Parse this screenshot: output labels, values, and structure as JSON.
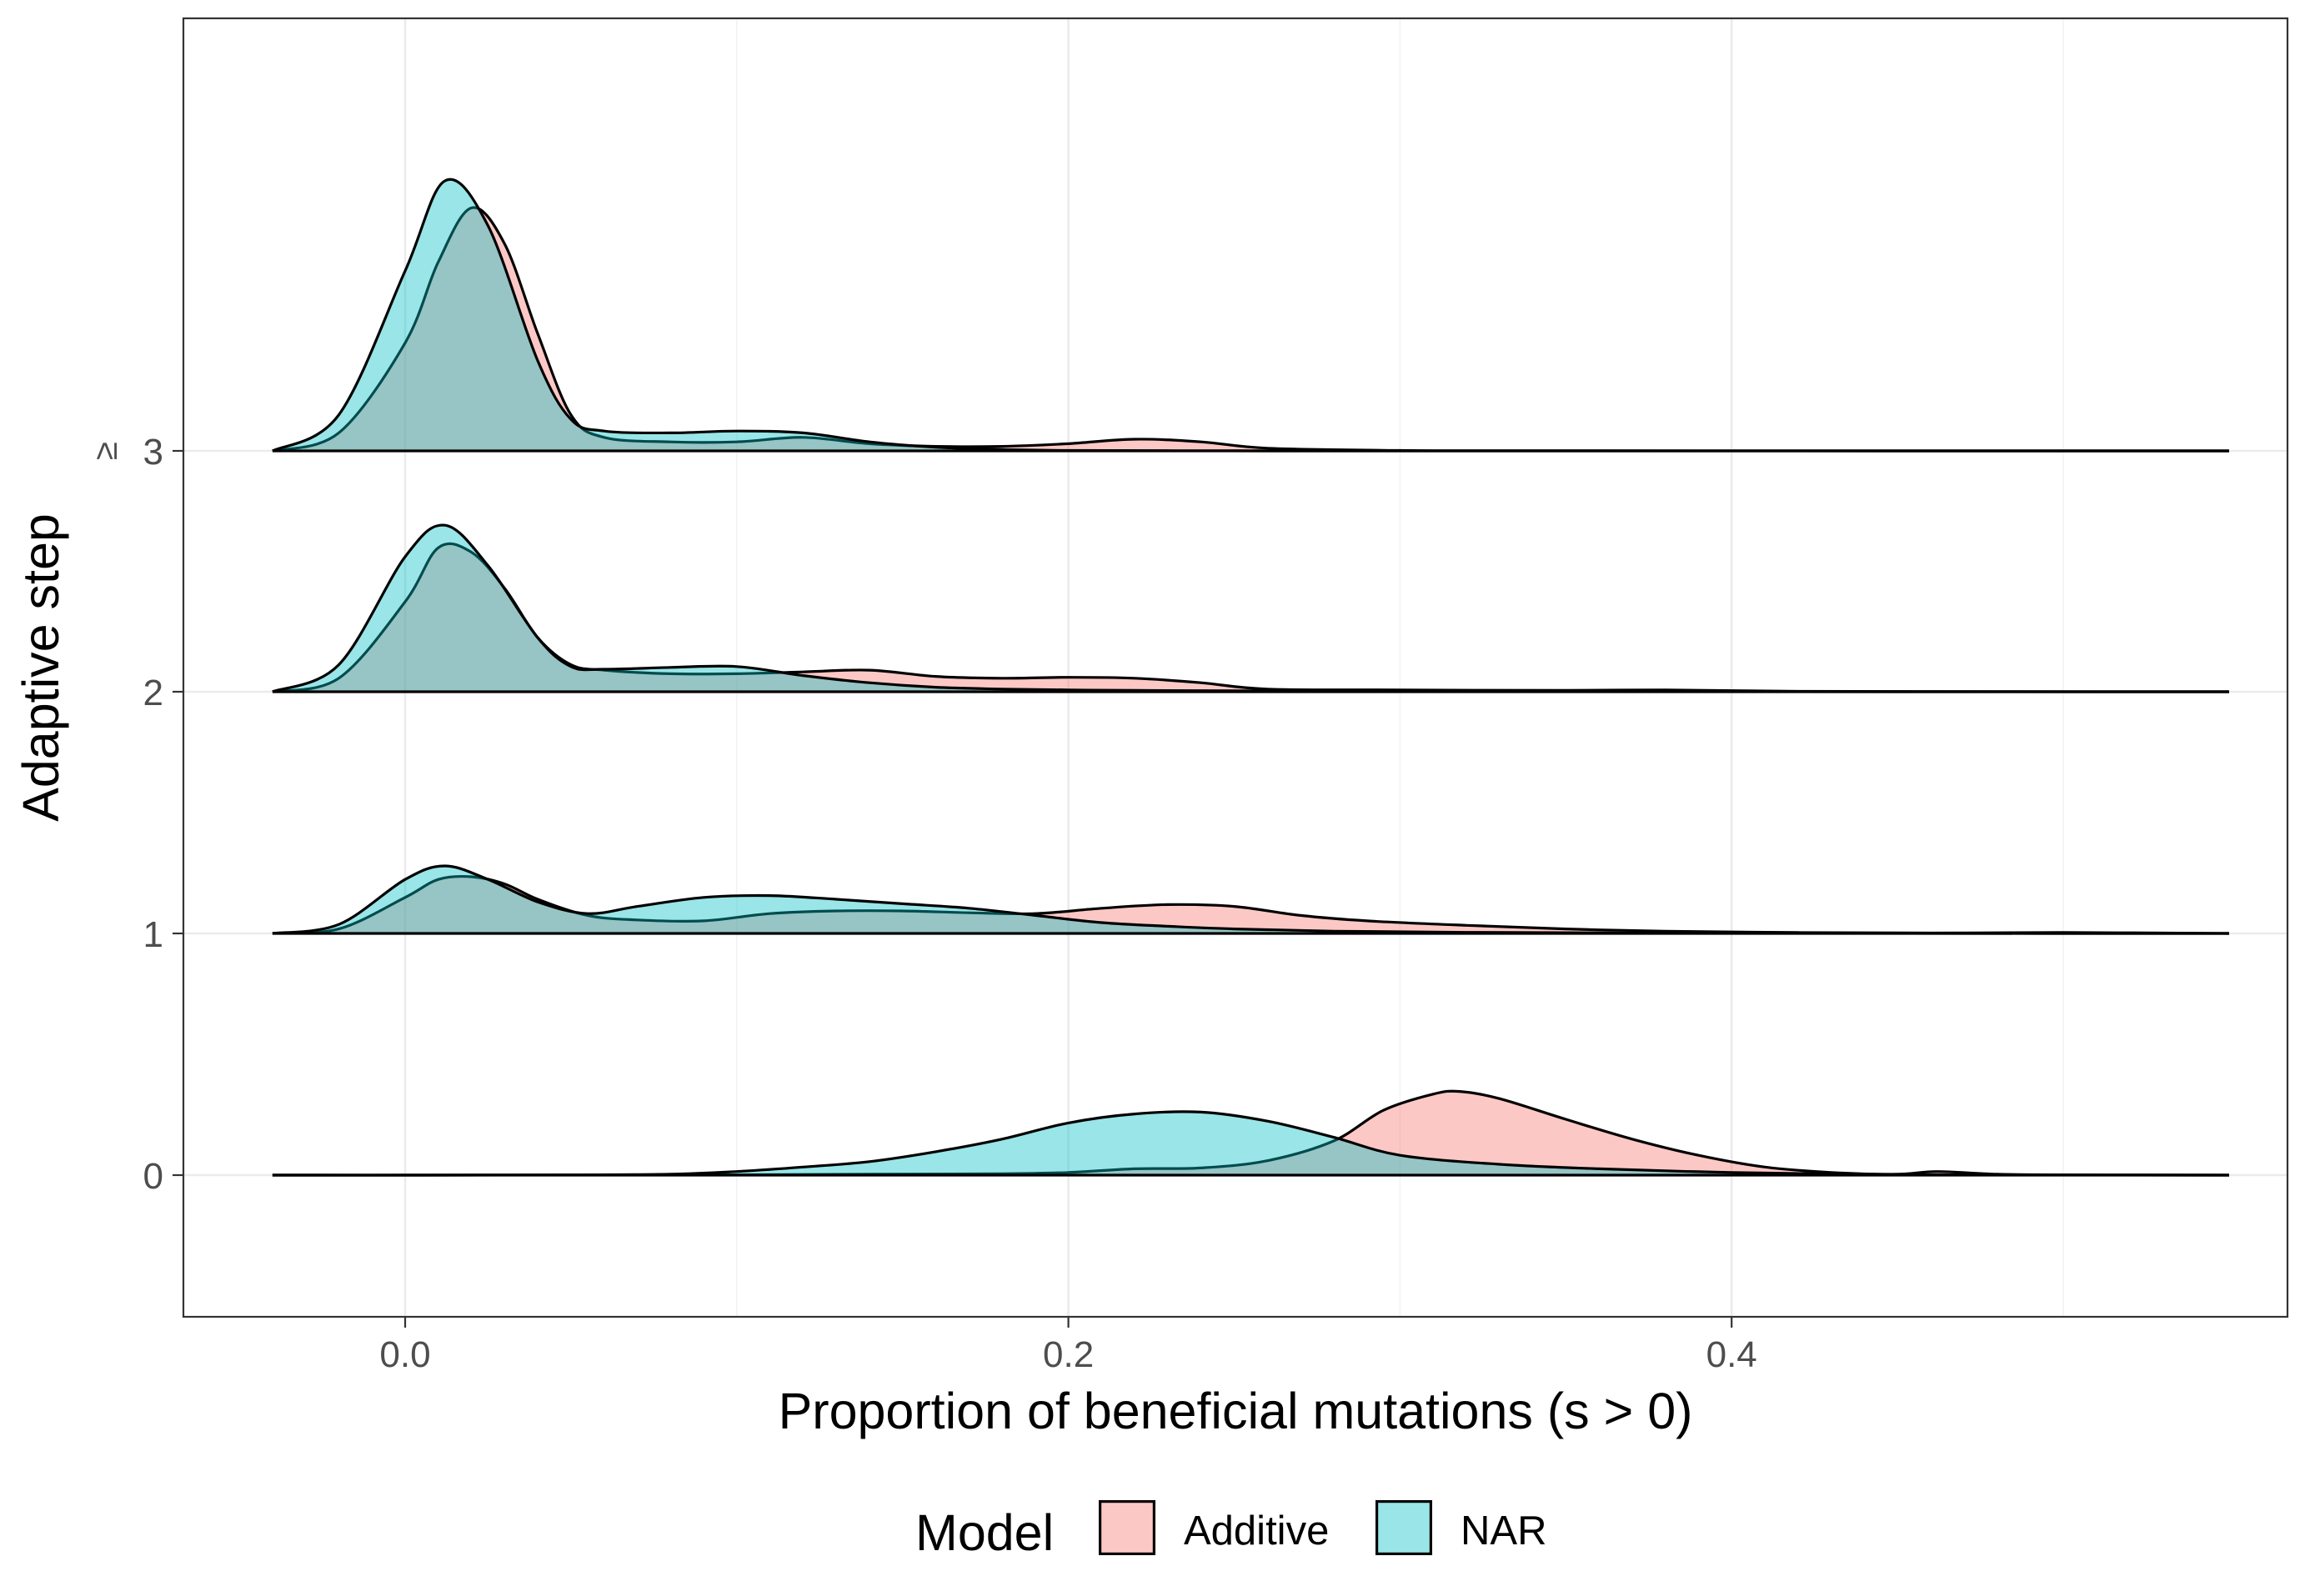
{
  "chart_data": {
    "type": "area",
    "subtype": "ridgeline-density",
    "xlabel": "Proportion of beneficial mutations (s > 0)",
    "ylabel": "Adaptive step",
    "xlim": [
      -0.067,
      0.571
    ],
    "x_ticks": [
      {
        "value": 0.0,
        "label": "0.0"
      },
      {
        "value": 0.2,
        "label": "0.2"
      },
      {
        "value": 0.4,
        "label": "0.4"
      }
    ],
    "y_ticks": [
      {
        "step": 0,
        "label": "0"
      },
      {
        "step": 1,
        "label": "1"
      },
      {
        "step": 2,
        "label": "2"
      },
      {
        "step": 3,
        "label": "≥ 3"
      }
    ],
    "grid": true,
    "theme": "bw",
    "legend": {
      "title": "Model",
      "position": "bottom",
      "entries": [
        {
          "name": "Additive",
          "color": "#F8766D"
        },
        {
          "name": "NAR",
          "color": "#00BFC4"
        }
      ]
    },
    "colors": {
      "Additive": "#F8766D",
      "NAR": "#00BFC4",
      "fill_opacity": 0.4,
      "outline": "#000000"
    },
    "ridges": [
      {
        "step": 0,
        "label": "0",
        "series": [
          {
            "name": "Additive",
            "x": [
              -0.04,
              0.0,
              0.06,
              0.1,
              0.14,
              0.18,
              0.2,
              0.22,
              0.24,
              0.26,
              0.28,
              0.295,
              0.31,
              0.318,
              0.33,
              0.35,
              0.37,
              0.39,
              0.41,
              0.43,
              0.45,
              0.462,
              0.48,
              0.5,
              0.55
            ],
            "y": [
              0,
              0,
              0.002,
              0.004,
              0.01,
              0.015,
              0.03,
              0.07,
              0.08,
              0.16,
              0.38,
              0.72,
              0.9,
              0.93,
              0.85,
              0.62,
              0.4,
              0.22,
              0.09,
              0.03,
              0.01,
              0.04,
              0.01,
              0.003,
              0
            ]
          },
          {
            "name": "NAR",
            "x": [
              -0.04,
              0.0,
              0.05,
              0.08,
              0.1,
              0.12,
              0.14,
              0.16,
              0.18,
              0.2,
              0.22,
              0.24,
              0.26,
              0.28,
              0.3,
              0.33,
              0.36,
              0.4,
              0.44,
              0.48,
              0.55
            ],
            "y": [
              0,
              0,
              0.003,
              0.01,
              0.04,
              0.09,
              0.15,
              0.26,
              0.4,
              0.58,
              0.68,
              0.7,
              0.6,
              0.42,
              0.22,
              0.12,
              0.07,
              0.03,
              0.01,
              0.003,
              0
            ]
          }
        ]
      },
      {
        "step": 1,
        "label": "1",
        "series": [
          {
            "name": "Additive",
            "x": [
              -0.04,
              -0.02,
              0.0,
              0.01,
              0.02,
              0.03,
              0.04,
              0.055,
              0.07,
              0.09,
              0.11,
              0.13,
              0.15,
              0.17,
              0.19,
              0.21,
              0.23,
              0.25,
              0.27,
              0.29,
              0.32,
              0.35,
              0.38,
              0.42,
              0.46,
              0.5,
              0.55
            ],
            "y": [
              0,
              0.05,
              0.4,
              0.6,
              0.63,
              0.55,
              0.38,
              0.2,
              0.15,
              0.14,
              0.22,
              0.25,
              0.25,
              0.23,
              0.22,
              0.28,
              0.32,
              0.3,
              0.2,
              0.14,
              0.09,
              0.05,
              0.025,
              0.01,
              0.005,
              0.01,
              0
            ]
          },
          {
            "name": "NAR",
            "x": [
              -0.04,
              -0.02,
              0.0,
              0.012,
              0.025,
              0.04,
              0.055,
              0.07,
              0.09,
              0.11,
              0.13,
              0.15,
              0.17,
              0.19,
              0.21,
              0.23,
              0.25,
              0.28,
              0.32,
              0.38,
              0.45,
              0.55
            ],
            "y": [
              0,
              0.1,
              0.6,
              0.75,
              0.6,
              0.35,
              0.22,
              0.3,
              0.4,
              0.42,
              0.38,
              0.33,
              0.28,
              0.2,
              0.12,
              0.08,
              0.05,
              0.025,
              0.012,
              0.004,
              0.001,
              0
            ]
          }
        ]
      },
      {
        "step": 2,
        "label": "2",
        "series": [
          {
            "name": "Additive",
            "x": [
              -0.04,
              -0.02,
              0.0,
              0.01,
              0.02,
              0.03,
              0.04,
              0.05,
              0.06,
              0.08,
              0.1,
              0.12,
              0.14,
              0.16,
              0.18,
              0.2,
              0.22,
              0.24,
              0.26,
              0.3,
              0.35,
              0.38,
              0.42,
              0.48,
              0.55
            ],
            "y": [
              0,
              0.15,
              1.0,
              1.6,
              1.55,
              1.15,
              0.6,
              0.3,
              0.24,
              0.2,
              0.2,
              0.22,
              0.24,
              0.17,
              0.15,
              0.16,
              0.15,
              0.1,
              0.03,
              0.02,
              0.015,
              0.02,
              0.005,
              0.001,
              0
            ]
          },
          {
            "name": "NAR",
            "x": [
              -0.04,
              -0.02,
              0.0,
              0.012,
              0.025,
              0.04,
              0.05,
              0.06,
              0.08,
              0.1,
              0.12,
              0.14,
              0.16,
              0.18,
              0.2,
              0.22,
              0.25,
              0.3,
              0.4,
              0.55
            ],
            "y": [
              0,
              0.3,
              1.5,
              1.85,
              1.4,
              0.6,
              0.28,
              0.25,
              0.27,
              0.28,
              0.18,
              0.1,
              0.05,
              0.03,
              0.02,
              0.015,
              0.01,
              0.005,
              0.001,
              0
            ]
          }
        ]
      },
      {
        "step": 3,
        "label": "≥ 3",
        "series": [
          {
            "name": "Additive",
            "x": [
              -0.04,
              -0.02,
              0.0,
              0.01,
              0.02,
              0.03,
              0.04,
              0.05,
              0.06,
              0.08,
              0.1,
              0.12,
              0.14,
              0.16,
              0.18,
              0.2,
              0.22,
              0.24,
              0.26,
              0.3,
              0.35,
              0.55
            ],
            "y": [
              0,
              0.2,
              1.2,
              2.1,
              2.7,
              2.3,
              1.3,
              0.4,
              0.15,
              0.1,
              0.1,
              0.15,
              0.08,
              0.05,
              0.05,
              0.08,
              0.13,
              0.1,
              0.03,
              0.005,
              0.001,
              0
            ]
          },
          {
            "name": "NAR",
            "x": [
              -0.04,
              -0.02,
              0.0,
              0.012,
              0.025,
              0.04,
              0.05,
              0.06,
              0.08,
              0.1,
              0.12,
              0.14,
              0.16,
              0.18,
              0.2,
              0.25,
              0.3,
              0.55
            ],
            "y": [
              0,
              0.4,
              2.0,
              3.0,
              2.5,
              1.0,
              0.35,
              0.22,
              0.2,
              0.22,
              0.2,
              0.1,
              0.04,
              0.015,
              0.005,
              0.001,
              0,
              0
            ]
          }
        ]
      }
    ]
  }
}
